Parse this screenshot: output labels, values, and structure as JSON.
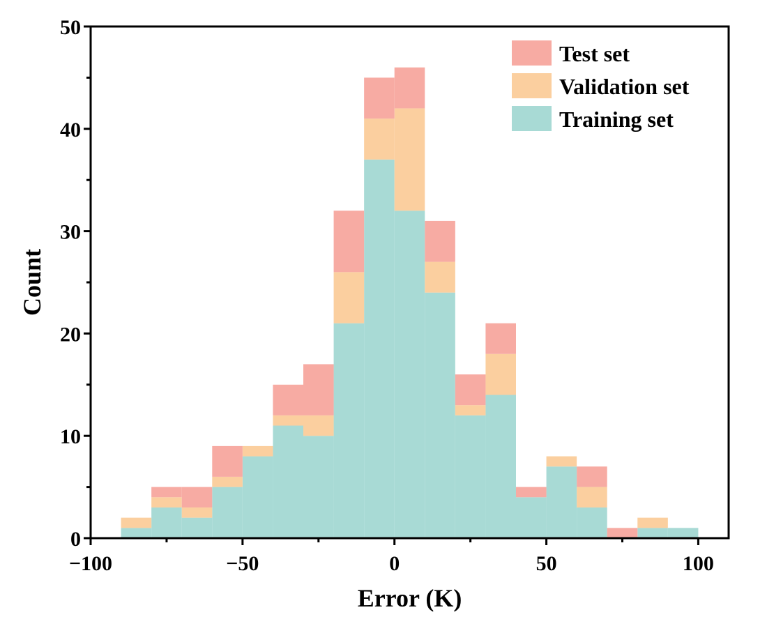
{
  "chart_data": {
    "type": "bar",
    "stacked": true,
    "histogram": true,
    "bin_edges": [
      -90,
      -80,
      -70,
      -60,
      -50,
      -40,
      -30,
      -20,
      -10,
      0,
      10,
      20,
      30,
      40,
      50,
      60,
      70,
      80,
      90,
      100
    ],
    "series": [
      {
        "name": "Training set",
        "color": "#a8dad5",
        "values": [
          1,
          3,
          2,
          5,
          8,
          11,
          10,
          21,
          37,
          32,
          24,
          12,
          14,
          4,
          7,
          3,
          0,
          1,
          1
        ]
      },
      {
        "name": "Validation set",
        "color": "#fbcf9f",
        "values": [
          1,
          1,
          1,
          1,
          1,
          1,
          2,
          5,
          4,
          10,
          3,
          1,
          4,
          0,
          1,
          2,
          0,
          1,
          0
        ]
      },
      {
        "name": "Test set",
        "color": "#f7aba3",
        "values": [
          0,
          1,
          2,
          3,
          0,
          3,
          5,
          6,
          4,
          4,
          4,
          3,
          3,
          1,
          0,
          2,
          1,
          0,
          0
        ]
      }
    ],
    "xlabel": "Error (K)",
    "ylabel": "Count",
    "xlim": [
      -100,
      110
    ],
    "ylim": [
      0,
      50
    ],
    "xticks": [
      -100,
      -50,
      0,
      50,
      100
    ],
    "xtick_labels": [
      "−100",
      "−50",
      "0",
      "50",
      "100"
    ],
    "yticks": [
      0,
      10,
      20,
      30,
      40,
      50
    ],
    "ytick_labels": [
      "0",
      "10",
      "20",
      "30",
      "40",
      "50"
    ],
    "legend": {
      "position": "top-right",
      "entries": [
        "Test set",
        "Validation set",
        "Training set"
      ]
    },
    "grid": false
  }
}
